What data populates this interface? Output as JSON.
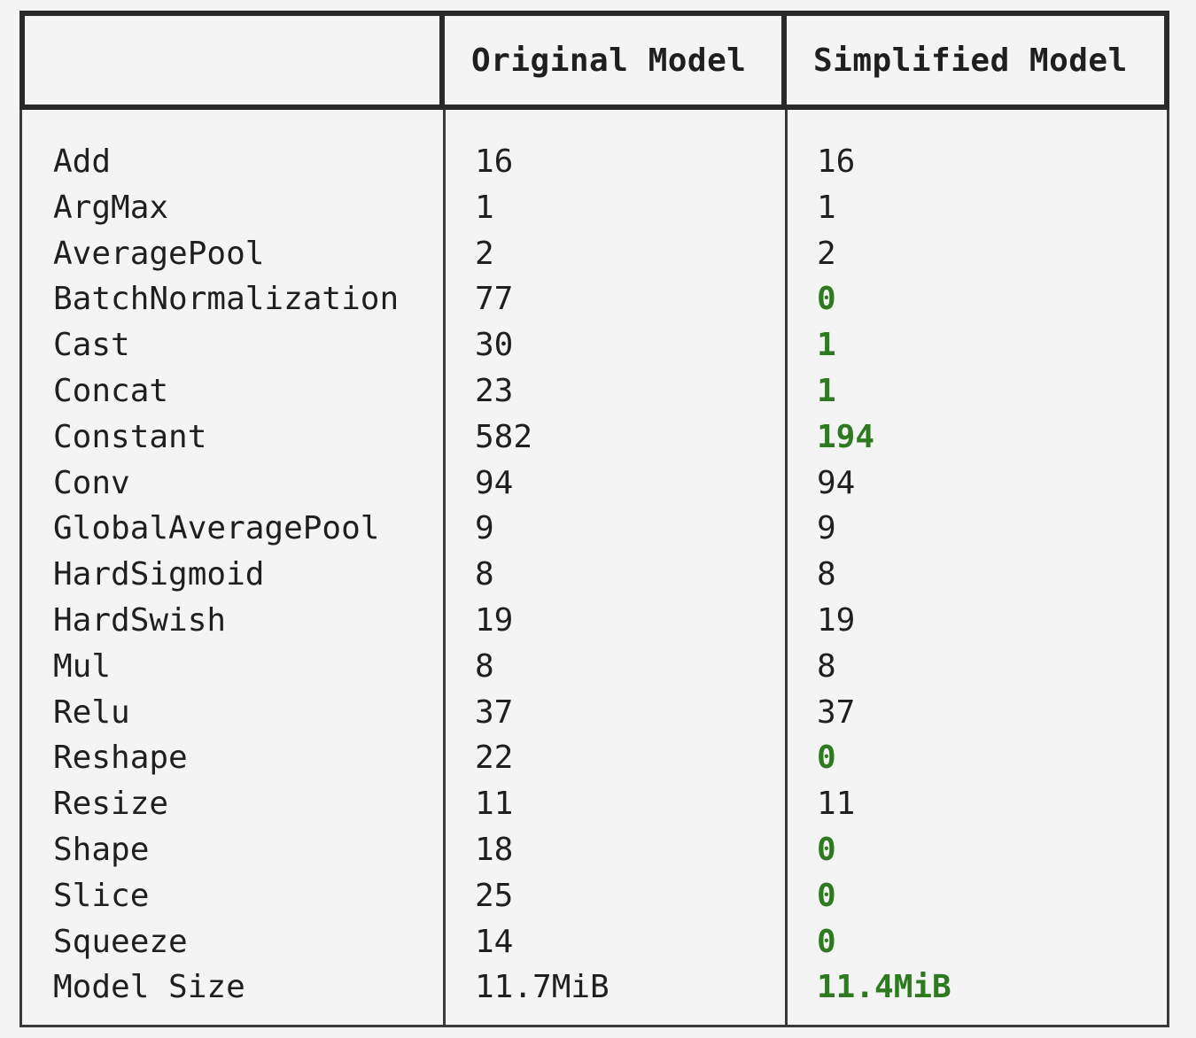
{
  "table": {
    "headers": [
      "",
      "Original Model",
      "Simplified Model"
    ],
    "rows": [
      {
        "name": "Add",
        "original": "16",
        "simplified": "16",
        "changed": false
      },
      {
        "name": "ArgMax",
        "original": "1",
        "simplified": "1",
        "changed": false
      },
      {
        "name": "AveragePool",
        "original": "2",
        "simplified": "2",
        "changed": false
      },
      {
        "name": "BatchNormalization",
        "original": "77",
        "simplified": "0",
        "changed": true
      },
      {
        "name": "Cast",
        "original": "30",
        "simplified": "1",
        "changed": true
      },
      {
        "name": "Concat",
        "original": "23",
        "simplified": "1",
        "changed": true
      },
      {
        "name": "Constant",
        "original": "582",
        "simplified": "194",
        "changed": true
      },
      {
        "name": "Conv",
        "original": "94",
        "simplified": "94",
        "changed": false
      },
      {
        "name": "GlobalAveragePool",
        "original": "9",
        "simplified": "9",
        "changed": false
      },
      {
        "name": "HardSigmoid",
        "original": "8",
        "simplified": "8",
        "changed": false
      },
      {
        "name": "HardSwish",
        "original": "19",
        "simplified": "19",
        "changed": false
      },
      {
        "name": "Mul",
        "original": "8",
        "simplified": "8",
        "changed": false
      },
      {
        "name": "Relu",
        "original": "37",
        "simplified": "37",
        "changed": false
      },
      {
        "name": "Reshape",
        "original": "22",
        "simplified": "0",
        "changed": true
      },
      {
        "name": "Resize",
        "original": "11",
        "simplified": "11",
        "changed": false
      },
      {
        "name": "Shape",
        "original": "18",
        "simplified": "0",
        "changed": true
      },
      {
        "name": "Slice",
        "original": "25",
        "simplified": "0",
        "changed": true
      },
      {
        "name": "Squeeze",
        "original": "14",
        "simplified": "0",
        "changed": true
      },
      {
        "name": "Model Size",
        "original": "11.7MiB",
        "simplified": "11.4MiB",
        "changed": true
      }
    ]
  },
  "colors": {
    "changed_value": "#2d7a1f",
    "border": "#2a2a2a",
    "background": "#f4f4f4"
  }
}
